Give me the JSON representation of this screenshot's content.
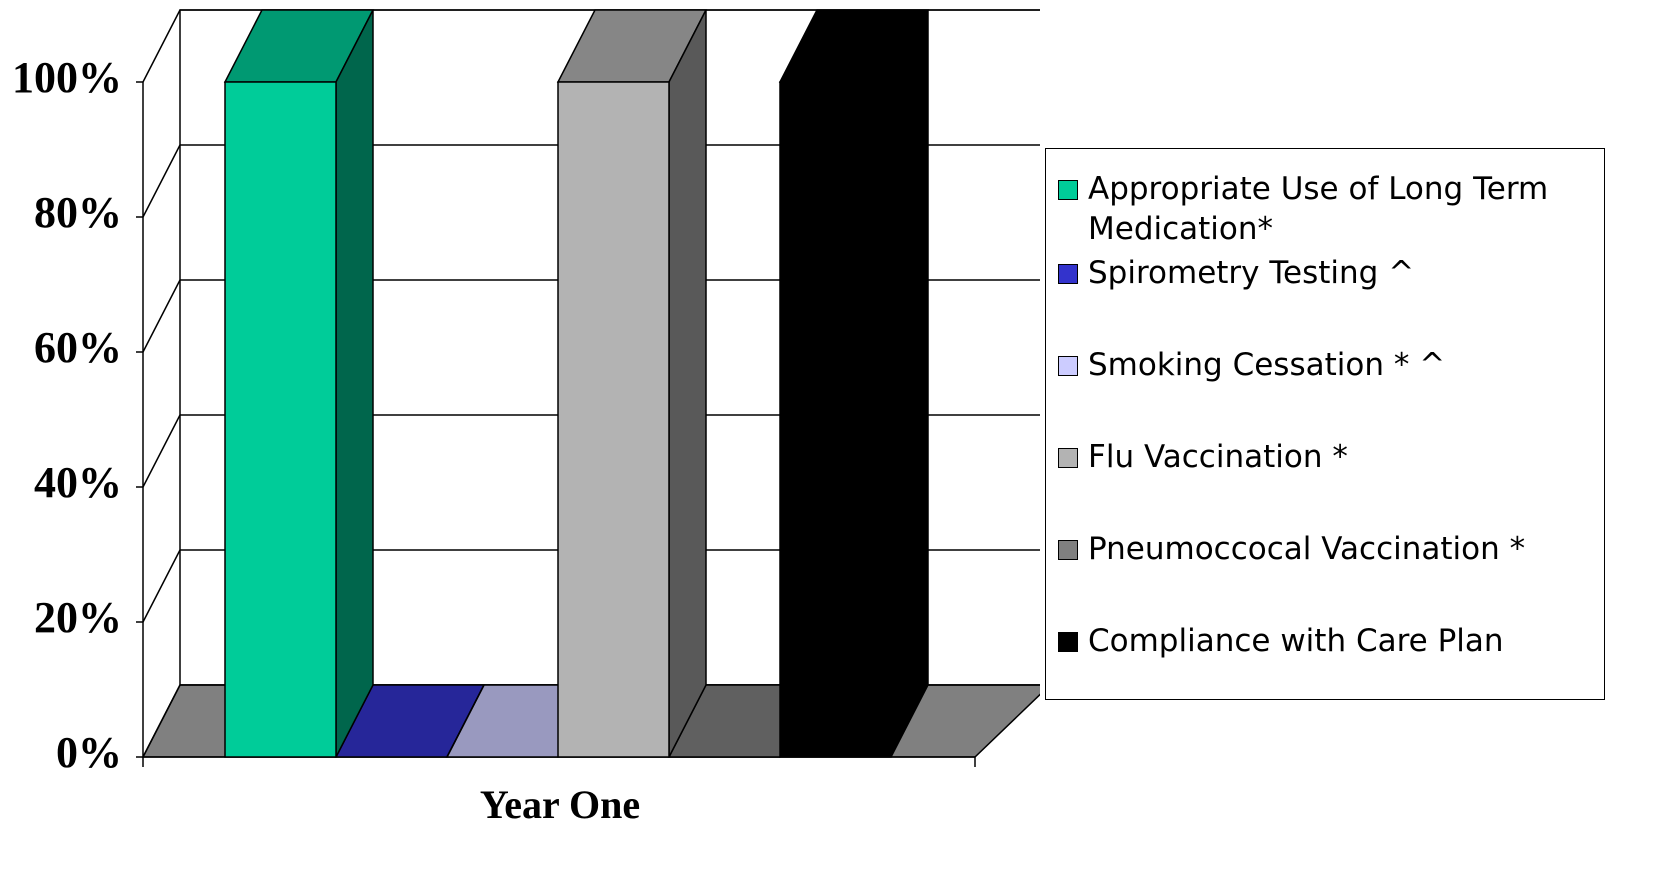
{
  "chart_data": {
    "type": "bar3d",
    "x_label": "Year One",
    "series": [
      {
        "name": "Appropriate Use of Long Term Medication*",
        "color": "#00cc99",
        "values": [
          100
        ]
      },
      {
        "name": "Spirometry Testing ^",
        "color": "#3333cc",
        "values": [
          0
        ]
      },
      {
        "name": "Smoking Cessation * ^",
        "color": "#ccccff",
        "values": [
          0
        ]
      },
      {
        "name": "Flu Vaccination *",
        "color": "#b3b3b3",
        "values": [
          100
        ]
      },
      {
        "name": "Pneumoccocal Vaccination *",
        "color": "#808080",
        "values": [
          0
        ]
      },
      {
        "name": "Compliance with Care Plan",
        "color": "#000000",
        "values": [
          100
        ]
      }
    ],
    "ylim": [
      0,
      100
    ],
    "yticks": [
      {
        "value": 0,
        "label": "0%"
      },
      {
        "value": 20,
        "label": "20%"
      },
      {
        "value": 40,
        "label": "40%"
      },
      {
        "value": 60,
        "label": "60%"
      },
      {
        "value": 80,
        "label": "80%"
      },
      {
        "value": 100,
        "label": "100%"
      }
    ],
    "grid": true,
    "legend": "right"
  }
}
